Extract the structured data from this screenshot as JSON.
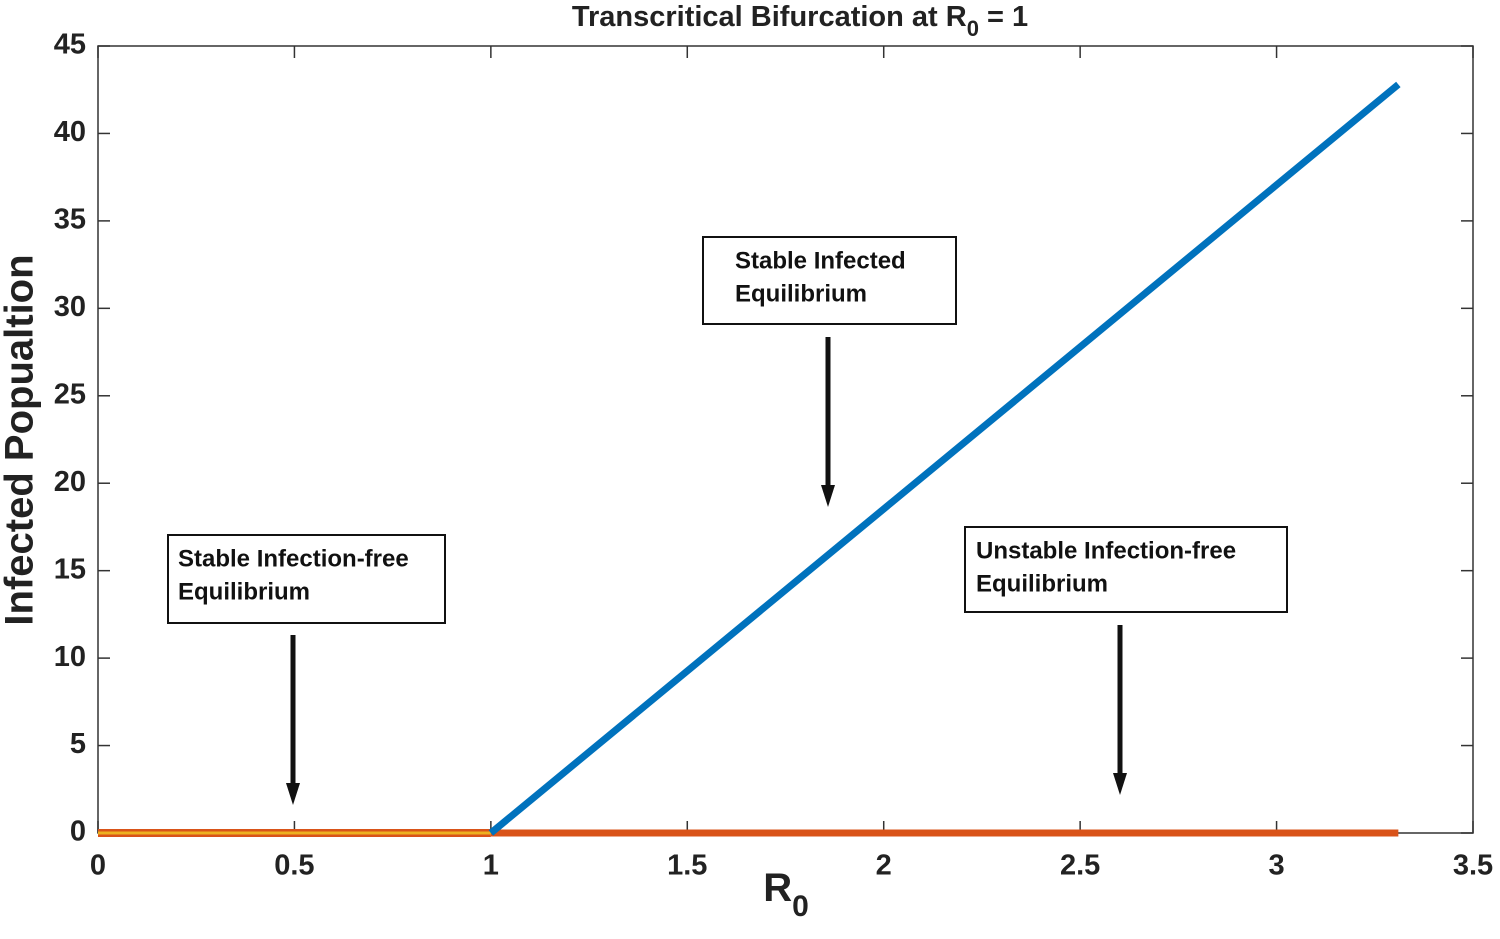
{
  "chart_data": {
    "type": "line",
    "title": {
      "main": "Transcritical Bifurcation at R",
      "subscript": "0",
      "rest": " = 1"
    },
    "xlabel": {
      "main": "R",
      "subscript": "0"
    },
    "ylabel": "Infected Popualtion",
    "xlim": [
      0,
      3.5
    ],
    "xticks": [
      0,
      0.5,
      1,
      1.5,
      2,
      2.5,
      3,
      3.5
    ],
    "ylim": [
      0,
      45
    ],
    "yticks": [
      0,
      5,
      10,
      15,
      20,
      25,
      30,
      35,
      40,
      45
    ],
    "series": [
      {
        "color": "#d95319",
        "x": [
          1,
          3.31
        ],
        "values": [
          0,
          0
        ]
      },
      {
        "color": "#edb120",
        "outline": "#d95319",
        "x": [
          0,
          1
        ],
        "values": [
          0,
          0
        ]
      },
      {
        "color": "#0072bd",
        "x": [
          1,
          3.31
        ],
        "values": [
          0,
          42.8
        ]
      }
    ],
    "annotations": [
      {
        "lines": [
          "Stable Infection-free",
          "Equilibrium"
        ]
      },
      {
        "lines": [
          "Stable Infected",
          "Equilibrium"
        ]
      },
      {
        "lines": [
          "Unstable Infection-free",
          "Equilibrium"
        ]
      }
    ]
  }
}
